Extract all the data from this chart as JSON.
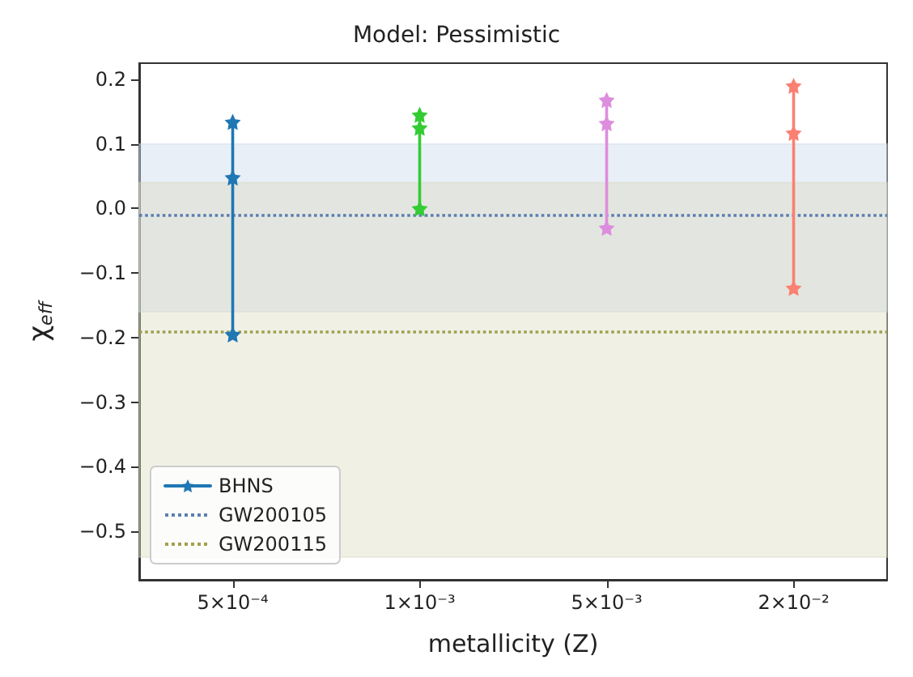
{
  "chart_data": {
    "type": "line",
    "title": "Model: Pessimistic",
    "xlabel": "metallicity (Z)",
    "ylabel": "χ$_{eff}$",
    "categories": [
      "5×10⁻⁴",
      "1×10⁻³",
      "5×10⁻³",
      "2×10⁻²"
    ],
    "series": [
      {
        "name": "BHNS",
        "color": "#1f77b4",
        "x": [
          "5×10⁻⁴",
          "5×10⁻⁴",
          "5×10⁻⁴"
        ],
        "values": [
          -0.195,
          0.048,
          0.134
        ]
      },
      {
        "color": "#33cc33",
        "x": [
          "1×10⁻³",
          "1×10⁻³",
          "1×10⁻³"
        ],
        "values": [
          0.0,
          0.125,
          0.145
        ]
      },
      {
        "color": "#dd8ddd",
        "x": [
          "5×10⁻³",
          "5×10⁻³",
          "5×10⁻³"
        ],
        "values": [
          -0.03,
          0.132,
          0.168
        ]
      },
      {
        "color": "#fa8072",
        "x": [
          "2×10⁻²",
          "2×10⁻²",
          "2×10⁻²"
        ],
        "values": [
          -0.123,
          0.117,
          0.19
        ]
      }
    ],
    "ylim": [
      -0.575,
      0.225
    ],
    "yticks": [
      -0.5,
      -0.4,
      -0.3,
      -0.2,
      -0.1,
      {
        "value": 0,
        "label": "0.0"
      },
      0.1,
      0.2
    ],
    "ref_lines": [
      {
        "axis": "y",
        "value": -0.01,
        "label": "GW200105",
        "color": "#5b7fb0",
        "line_style": "dotted"
      },
      {
        "axis": "y",
        "value": -0.19,
        "label": "GW200115",
        "color": "#a0a050",
        "line_style": "dotted"
      }
    ],
    "bands": [
      {
        "axis": "y",
        "from": -0.16,
        "to": 0.1,
        "color": "#c8d6ec"
      },
      {
        "axis": "y",
        "from": -0.54,
        "to": 0.04,
        "color": "#d9d9bd"
      }
    ],
    "marker": "star",
    "line_style": "solid",
    "legend": "bottom left",
    "grid": false
  }
}
